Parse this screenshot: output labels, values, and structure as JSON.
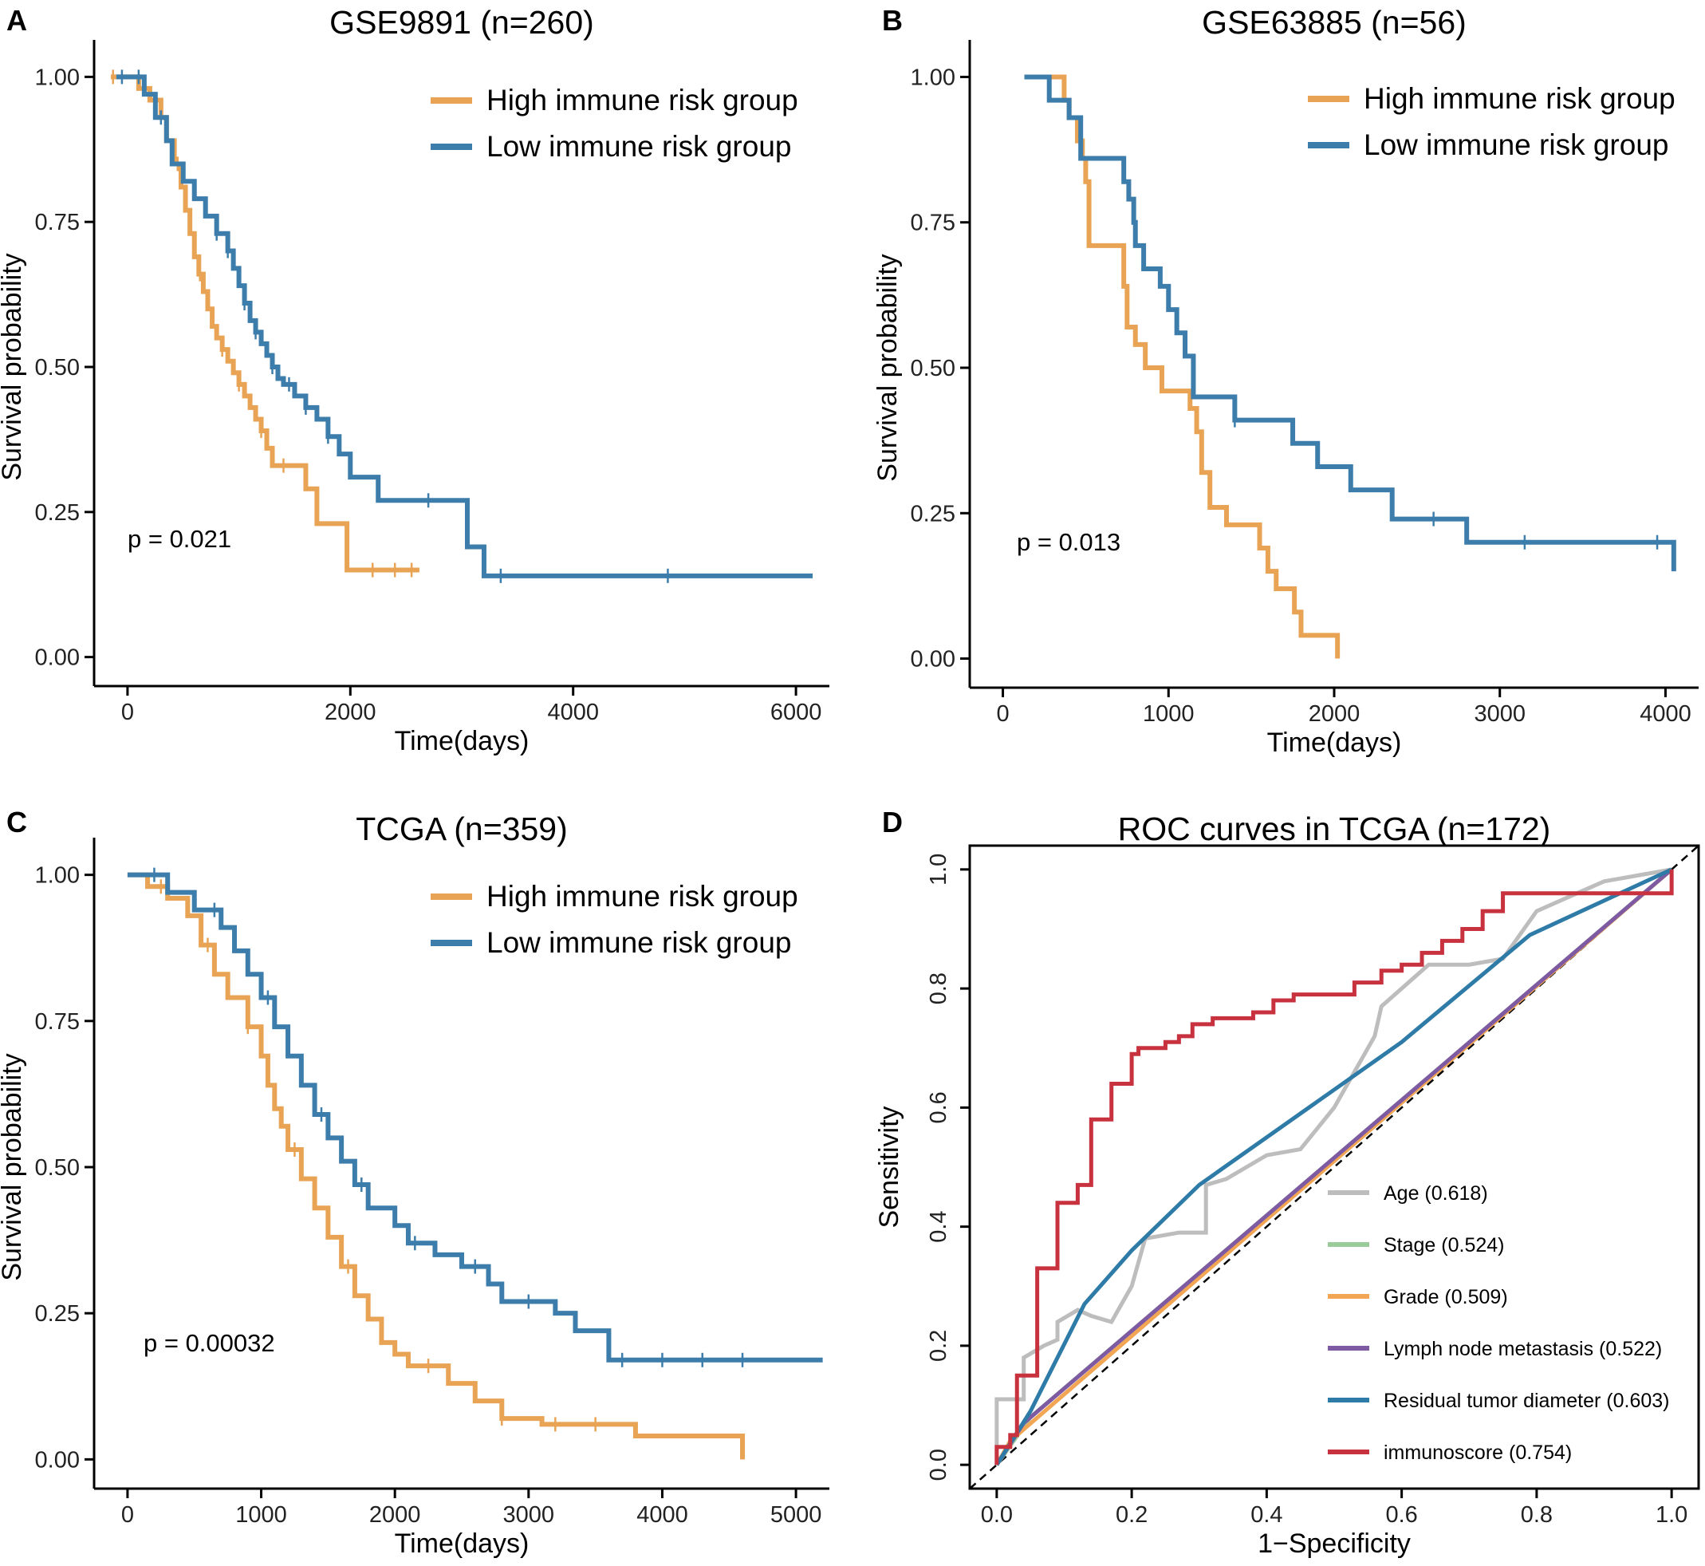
{
  "figure": {
    "panels": [
      "A",
      "B",
      "C",
      "D"
    ]
  },
  "colors": {
    "high": "#E8A354",
    "low": "#3D7DAB",
    "age": "#BDBDBD",
    "stage": "#9BCB9B",
    "grade": "#F2A654",
    "lymph": "#7E5AA3",
    "residual": "#2F7BA8",
    "immunoscore": "#C8323F"
  },
  "chart_data": [
    {
      "panel": "A",
      "type": "line",
      "title": "GSE9891 (n=260)",
      "xlabel": "Time(days)",
      "ylabel": "Survival probability",
      "xlim": [
        -300,
        6300
      ],
      "ylim": [
        -0.05,
        1.05
      ],
      "xticks": [
        0,
        2000,
        4000,
        6000
      ],
      "yticks": [
        0,
        0.25,
        0.5,
        0.75,
        1.0
      ],
      "xtick_labels": [
        "0",
        "2000",
        "4000",
        "6000"
      ],
      "ytick_labels": [
        "0.00",
        "0.25",
        "0.50",
        "0.75",
        "1.00"
      ],
      "legend": [
        "High immune risk group",
        "Low immune risk group"
      ],
      "legend_pos": "top-right",
      "pvalue": "p = 0.021",
      "series": [
        {
          "name": "High immune risk group",
          "color": "high",
          "step": true,
          "x": [
            -150,
            100,
            200,
            300,
            350,
            420,
            480,
            520,
            560,
            600,
            640,
            680,
            720,
            760,
            800,
            850,
            900,
            950,
            1000,
            1050,
            1100,
            1150,
            1200,
            1250,
            1300,
            1400,
            1600,
            1700,
            1970,
            2620
          ],
          "y": [
            1.0,
            0.98,
            0.96,
            0.93,
            0.89,
            0.85,
            0.81,
            0.77,
            0.73,
            0.69,
            0.66,
            0.63,
            0.6,
            0.57,
            0.55,
            0.53,
            0.51,
            0.49,
            0.47,
            0.45,
            0.43,
            0.41,
            0.39,
            0.36,
            0.33,
            0.33,
            0.29,
            0.23,
            0.15,
            0.15
          ],
          "censor_x": [
            -130,
            150,
            250,
            450,
            650,
            850,
            1000,
            1200,
            1400,
            2200,
            2400,
            2550
          ]
        },
        {
          "name": "Low immune risk group",
          "color": "low",
          "step": true,
          "x": [
            -100,
            150,
            250,
            350,
            400,
            500,
            600,
            700,
            800,
            900,
            950,
            1000,
            1050,
            1100,
            1150,
            1200,
            1250,
            1300,
            1350,
            1400,
            1500,
            1600,
            1700,
            1800,
            1900,
            2000,
            2250,
            3050,
            3200,
            6150
          ],
          "y": [
            1.0,
            0.97,
            0.93,
            0.89,
            0.85,
            0.82,
            0.79,
            0.76,
            0.73,
            0.7,
            0.67,
            0.64,
            0.61,
            0.58,
            0.56,
            0.54,
            0.52,
            0.5,
            0.48,
            0.47,
            0.45,
            0.43,
            0.41,
            0.38,
            0.35,
            0.31,
            0.27,
            0.19,
            0.14,
            0.14
          ],
          "censor_x": [
            -50,
            100,
            300,
            800,
            900,
            1050,
            1150,
            1300,
            1450,
            1600,
            1800,
            2700,
            3350,
            4850
          ]
        }
      ]
    },
    {
      "panel": "B",
      "type": "line",
      "title": "GSE63885 (n=56)",
      "xlabel": "Time(days)",
      "ylabel": "Survival probability",
      "xlim": [
        -200,
        4200
      ],
      "ylim": [
        -0.05,
        1.05
      ],
      "xticks": [
        0,
        1000,
        2000,
        3000,
        4000
      ],
      "yticks": [
        0,
        0.25,
        0.5,
        0.75,
        1.0
      ],
      "xtick_labels": [
        "0",
        "1000",
        "2000",
        "3000",
        "4000"
      ],
      "ytick_labels": [
        "0.00",
        "0.25",
        "0.50",
        "0.75",
        "1.00"
      ],
      "legend": [
        "High immune risk group",
        "Low immune risk group"
      ],
      "legend_pos": "top-right",
      "pvalue": "p = 0.013",
      "series": [
        {
          "name": "High immune risk group",
          "color": "high",
          "step": true,
          "x": [
            130,
            370,
            400,
            450,
            480,
            500,
            520,
            700,
            730,
            750,
            800,
            860,
            960,
            1080,
            1130,
            1170,
            1200,
            1250,
            1350,
            1550,
            1600,
            1650,
            1760,
            1800,
            2020
          ],
          "y": [
            1.0,
            0.96,
            0.93,
            0.89,
            0.86,
            0.82,
            0.71,
            0.71,
            0.64,
            0.57,
            0.54,
            0.5,
            0.46,
            0.46,
            0.43,
            0.39,
            0.32,
            0.26,
            0.23,
            0.19,
            0.15,
            0.12,
            0.08,
            0.04,
            0.0
          ]
        },
        {
          "name": "Low immune risk group",
          "color": "low",
          "step": true,
          "x": [
            130,
            280,
            400,
            470,
            720,
            730,
            760,
            790,
            800,
            850,
            950,
            1000,
            1050,
            1100,
            1150,
            1400,
            1750,
            1900,
            2100,
            2350,
            2800,
            4050
          ],
          "y": [
            1.0,
            0.96,
            0.93,
            0.86,
            0.86,
            0.82,
            0.79,
            0.75,
            0.71,
            0.67,
            0.64,
            0.6,
            0.56,
            0.52,
            0.45,
            0.41,
            0.37,
            0.33,
            0.29,
            0.24,
            0.2,
            0.15
          ],
          "censor_x": [
            1400,
            2600,
            3150,
            3950
          ]
        }
      ]
    },
    {
      "panel": "C",
      "type": "line",
      "title": "TCGA (n=359)",
      "xlabel": "Time(days)",
      "ylabel": "Survival probability",
      "xlim": [
        -250,
        5250
      ],
      "ylim": [
        -0.05,
        1.05
      ],
      "xticks": [
        0,
        1000,
        2000,
        3000,
        4000,
        5000
      ],
      "yticks": [
        0,
        0.25,
        0.5,
        0.75,
        1.0
      ],
      "xtick_labels": [
        "0",
        "1000",
        "2000",
        "3000",
        "4000",
        "5000"
      ],
      "ytick_labels": [
        "0.00",
        "0.25",
        "0.50",
        "0.75",
        "1.00"
      ],
      "legend": [
        "High immune risk group",
        "Low immune risk group"
      ],
      "legend_pos": "top-right",
      "pvalue": "p = 0.00032",
      "series": [
        {
          "name": "High immune risk group",
          "color": "high",
          "step": true,
          "x": [
            0,
            150,
            300,
            450,
            550,
            650,
            750,
            900,
            1000,
            1050,
            1100,
            1150,
            1200,
            1300,
            1400,
            1500,
            1600,
            1700,
            1800,
            1900,
            2000,
            2100,
            2400,
            2600,
            2800,
            3100,
            3600,
            3800,
            4600
          ],
          "y": [
            1.0,
            0.98,
            0.96,
            0.93,
            0.88,
            0.83,
            0.79,
            0.74,
            0.69,
            0.64,
            0.6,
            0.57,
            0.53,
            0.48,
            0.43,
            0.38,
            0.33,
            0.28,
            0.24,
            0.2,
            0.18,
            0.16,
            0.13,
            0.1,
            0.07,
            0.06,
            0.06,
            0.04,
            0.0
          ],
          "censor_x": [
            250,
            600,
            900,
            1250,
            1650,
            2250,
            2800,
            3200,
            3500
          ]
        },
        {
          "name": "Low immune risk group",
          "color": "low",
          "step": true,
          "x": [
            0,
            300,
            500,
            700,
            800,
            900,
            1000,
            1100,
            1200,
            1300,
            1400,
            1500,
            1600,
            1700,
            1800,
            2000,
            2100,
            2300,
            2500,
            2700,
            2800,
            3200,
            3350,
            3600,
            5200
          ],
          "y": [
            1.0,
            0.97,
            0.94,
            0.91,
            0.87,
            0.83,
            0.79,
            0.74,
            0.69,
            0.64,
            0.59,
            0.55,
            0.51,
            0.47,
            0.43,
            0.4,
            0.37,
            0.35,
            0.33,
            0.3,
            0.27,
            0.25,
            0.22,
            0.17,
            0.17
          ],
          "censor_x": [
            200,
            650,
            1050,
            1450,
            1750,
            2150,
            2600,
            3000,
            3700,
            4000,
            4300,
            4600
          ]
        }
      ]
    },
    {
      "panel": "D",
      "type": "line",
      "title": "ROC curves in TCGA (n=172)",
      "xlabel": "1−Specificity",
      "ylabel": "Sensitivity",
      "xlim": [
        -0.04,
        1.04
      ],
      "ylim": [
        -0.04,
        1.04
      ],
      "xticks": [
        0,
        0.2,
        0.4,
        0.6,
        0.8,
        1.0
      ],
      "yticks": [
        0,
        0.2,
        0.4,
        0.6,
        0.8,
        1.0
      ],
      "xtick_labels": [
        "0.0",
        "0.2",
        "0.4",
        "0.6",
        "0.8",
        "1.0"
      ],
      "ytick_labels": [
        "0.0",
        "0.2",
        "0.4",
        "0.6",
        "0.8",
        "1.0"
      ],
      "legend": [
        "Age (0.618)",
        "Stage (0.524)",
        "Grade (0.509)",
        "Lymph node metastasis (0.522)",
        "Residual tumor diameter (0.603)",
        "immunoscore (0.754)"
      ],
      "legend_pos": "bottom-right",
      "diagonal": true,
      "series": [
        {
          "name": "Age (0.618)",
          "color": "age",
          "step": false,
          "x": [
            0,
            0,
            0.04,
            0.04,
            0.07,
            0.09,
            0.09,
            0.12,
            0.14,
            0.17,
            0.2,
            0.22,
            0.22,
            0.27,
            0.31,
            0.31,
            0.34,
            0.37,
            0.4,
            0.45,
            0.5,
            0.53,
            0.56,
            0.57,
            0.6,
            0.64,
            0.7,
            0.75,
            0.8,
            0.86,
            0.9,
            1.0
          ],
          "y": [
            0,
            0.11,
            0.11,
            0.18,
            0.2,
            0.21,
            0.24,
            0.26,
            0.25,
            0.24,
            0.3,
            0.38,
            0.38,
            0.39,
            0.39,
            0.47,
            0.48,
            0.5,
            0.52,
            0.53,
            0.6,
            0.66,
            0.72,
            0.77,
            0.8,
            0.84,
            0.84,
            0.85,
            0.93,
            0.96,
            0.98,
            1.0
          ]
        },
        {
          "name": "Stage (0.524)",
          "color": "stage",
          "step": false,
          "x": [
            0,
            0.05,
            1.0
          ],
          "y": [
            0,
            0.08,
            1.0
          ]
        },
        {
          "name": "Grade (0.509)",
          "color": "grade",
          "step": false,
          "x": [
            0,
            0.02,
            1.0
          ],
          "y": [
            0,
            0.04,
            1.0
          ]
        },
        {
          "name": "Lymph node metastasis (0.522)",
          "color": "lymph",
          "step": false,
          "x": [
            0,
            0.04,
            1.0
          ],
          "y": [
            0,
            0.07,
            1.0
          ]
        },
        {
          "name": "Residual tumor diameter (0.603)",
          "color": "residual",
          "step": false,
          "x": [
            0,
            0.05,
            0.13,
            0.2,
            0.3,
            0.45,
            0.6,
            0.79,
            1.0
          ],
          "y": [
            0,
            0.09,
            0.27,
            0.36,
            0.47,
            0.59,
            0.71,
            0.89,
            1.0
          ]
        },
        {
          "name": "immunoscore (0.754)",
          "color": "immunoscore",
          "step": false,
          "x": [
            0,
            0,
            0.02,
            0.02,
            0.03,
            0.03,
            0.06,
            0.06,
            0.09,
            0.09,
            0.12,
            0.12,
            0.14,
            0.14,
            0.17,
            0.17,
            0.2,
            0.2,
            0.21,
            0.21,
            0.25,
            0.25,
            0.27,
            0.27,
            0.29,
            0.29,
            0.32,
            0.32,
            0.38,
            0.38,
            0.41,
            0.41,
            0.44,
            0.44,
            0.53,
            0.53,
            0.57,
            0.57,
            0.6,
            0.6,
            0.63,
            0.63,
            0.66,
            0.66,
            0.69,
            0.69,
            0.72,
            0.72,
            0.75,
            0.75,
            1.0,
            1.0
          ],
          "y": [
            0,
            0.03,
            0.03,
            0.05,
            0.05,
            0.15,
            0.15,
            0.33,
            0.33,
            0.44,
            0.44,
            0.47,
            0.47,
            0.58,
            0.58,
            0.64,
            0.64,
            0.69,
            0.69,
            0.7,
            0.7,
            0.71,
            0.71,
            0.72,
            0.72,
            0.74,
            0.74,
            0.75,
            0.75,
            0.76,
            0.76,
            0.78,
            0.78,
            0.79,
            0.79,
            0.81,
            0.81,
            0.83,
            0.83,
            0.84,
            0.84,
            0.86,
            0.86,
            0.88,
            0.88,
            0.9,
            0.9,
            0.93,
            0.93,
            0.96,
            0.96,
            1.0
          ]
        }
      ]
    }
  ]
}
